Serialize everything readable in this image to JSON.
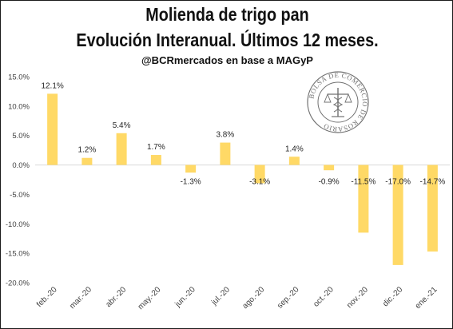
{
  "title_line1": "Molienda de trigo pan",
  "title_line2": "Evolución Interanual. Últimos 12 meses.",
  "subtitle": "@BCRmercados en base a MAGyP",
  "seal_text": "BOLSA DE COMERCIO DE ROSARIO",
  "colors": {
    "bar": "#FFD966",
    "axis": "#d9d9d9",
    "text": "#404040"
  },
  "chart_data": {
    "type": "bar",
    "categories": [
      "feb.-20",
      "mar.-20",
      "abr.-20",
      "may.-20",
      "jun.-20",
      "jul.-20",
      "ago.-20",
      "sep.-20",
      "oct.-20",
      "nov.-20",
      "dic.-20",
      "ene.-21"
    ],
    "values": [
      12.1,
      1.2,
      5.4,
      1.7,
      -1.3,
      3.8,
      -3.1,
      1.4,
      -0.9,
      -11.5,
      -17.0,
      -14.7
    ],
    "data_labels": [
      "12.1%",
      "1.2%",
      "5.4%",
      "1.7%",
      "-1.3%",
      "3.8%",
      "-3.1%",
      "1.4%",
      "-0.9%",
      "-11.5%",
      "-17.0%",
      "-14.7%"
    ],
    "ylim": [
      -20,
      15
    ],
    "yticks": [
      15,
      10,
      5,
      0,
      -5,
      -10,
      -15,
      -20
    ],
    "ytick_labels": [
      "15.0%",
      "10.0%",
      "5.0%",
      "0.0%",
      "-5.0%",
      "-10.0%",
      "-15.0%",
      "-20.0%"
    ],
    "title": "Molienda de trigo pan Evolución Interanual. Últimos 12 meses.",
    "xlabel": "",
    "ylabel": "",
    "grid": false,
    "legend": "none"
  }
}
